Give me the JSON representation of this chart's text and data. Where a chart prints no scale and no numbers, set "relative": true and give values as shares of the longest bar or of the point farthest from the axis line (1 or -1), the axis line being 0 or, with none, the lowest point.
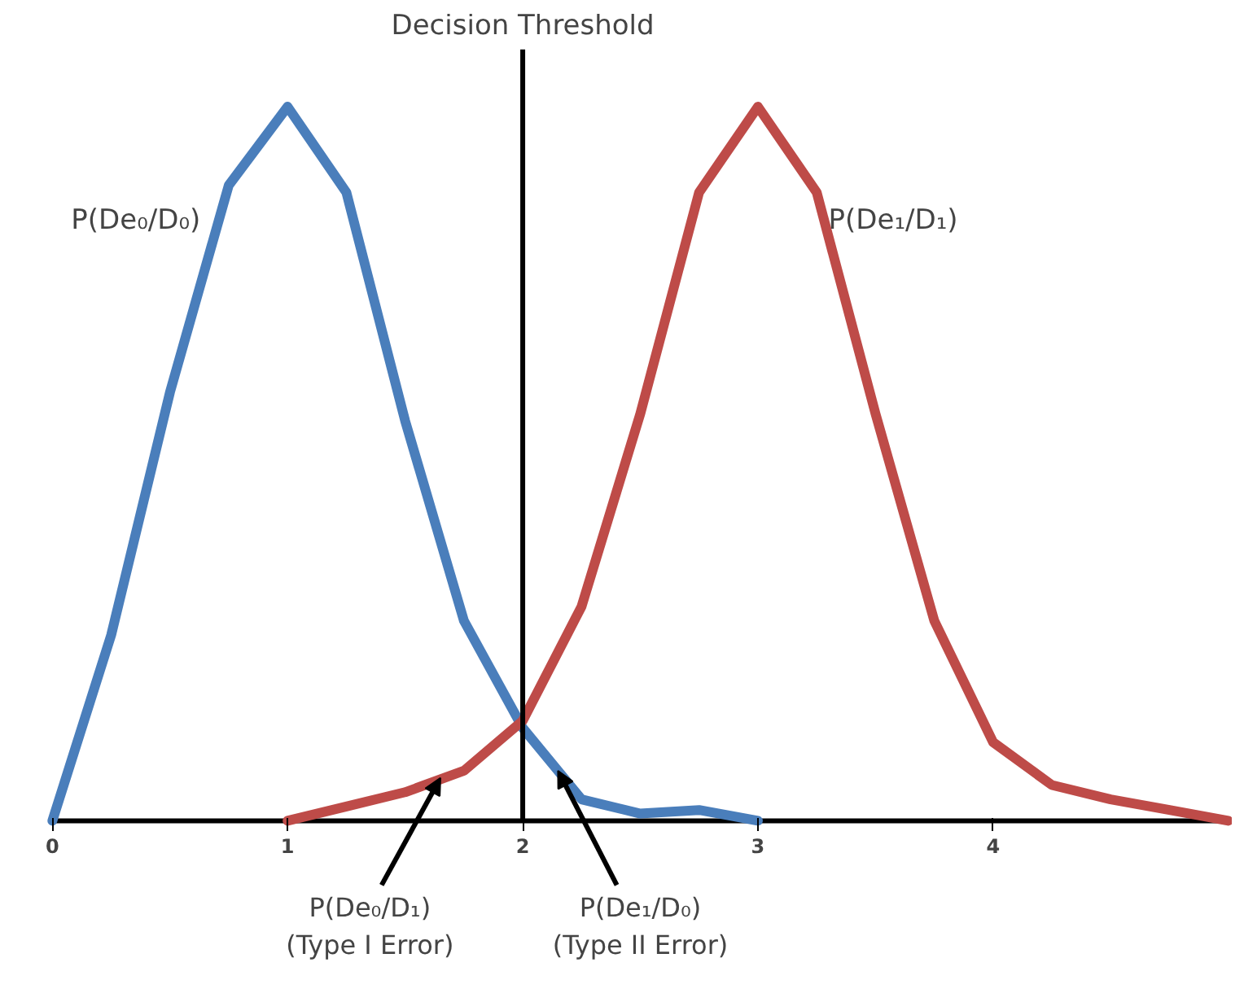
{
  "chart_data": {
    "type": "line",
    "relative": true,
    "x": [
      0,
      0.25,
      0.5,
      0.75,
      1,
      1.25,
      1.5,
      1.75,
      2,
      2.25,
      2.5,
      2.75,
      3,
      3.25,
      3.5,
      3.75,
      4,
      4.25,
      4.5,
      4.75,
      5
    ],
    "series": [
      {
        "name": "P(De₀/D₀)",
        "color": "#4a7ebb",
        "values": [
          0,
          0.26,
          0.6,
          0.89,
          1,
          0.88,
          0.56,
          0.28,
          0.13,
          0.03,
          0.01,
          0.015,
          0,
          null,
          null,
          null,
          null,
          null,
          null,
          null,
          null
        ]
      },
      {
        "name": "P(De₁/D₁)",
        "color": "#be4b48",
        "values": [
          null,
          null,
          null,
          null,
          0,
          0.02,
          0.04,
          0.07,
          0.14,
          0.3,
          0.57,
          0.88,
          1,
          0.88,
          0.57,
          0.28,
          0.11,
          0.05,
          0.03,
          0.015,
          0
        ]
      }
    ],
    "xlim": [
      0,
      5
    ],
    "xticks": [
      0,
      1,
      2,
      3,
      4
    ],
    "tick_labels": "x",
    "grid": false,
    "marker": "none",
    "line_style": "solid",
    "ref_lines": [
      {
        "axis": "x",
        "value": 2,
        "label": "Decision Threshold",
        "color": "#000000"
      }
    ],
    "annotations": [
      {
        "text": "P(De₀/D₁)\n(Type I Error)",
        "x": 1.65,
        "y": 0.06
      },
      {
        "text": "P(De₁/D₀)\n(Type II Error)",
        "x": 2.15,
        "y": 0.07
      }
    ]
  }
}
